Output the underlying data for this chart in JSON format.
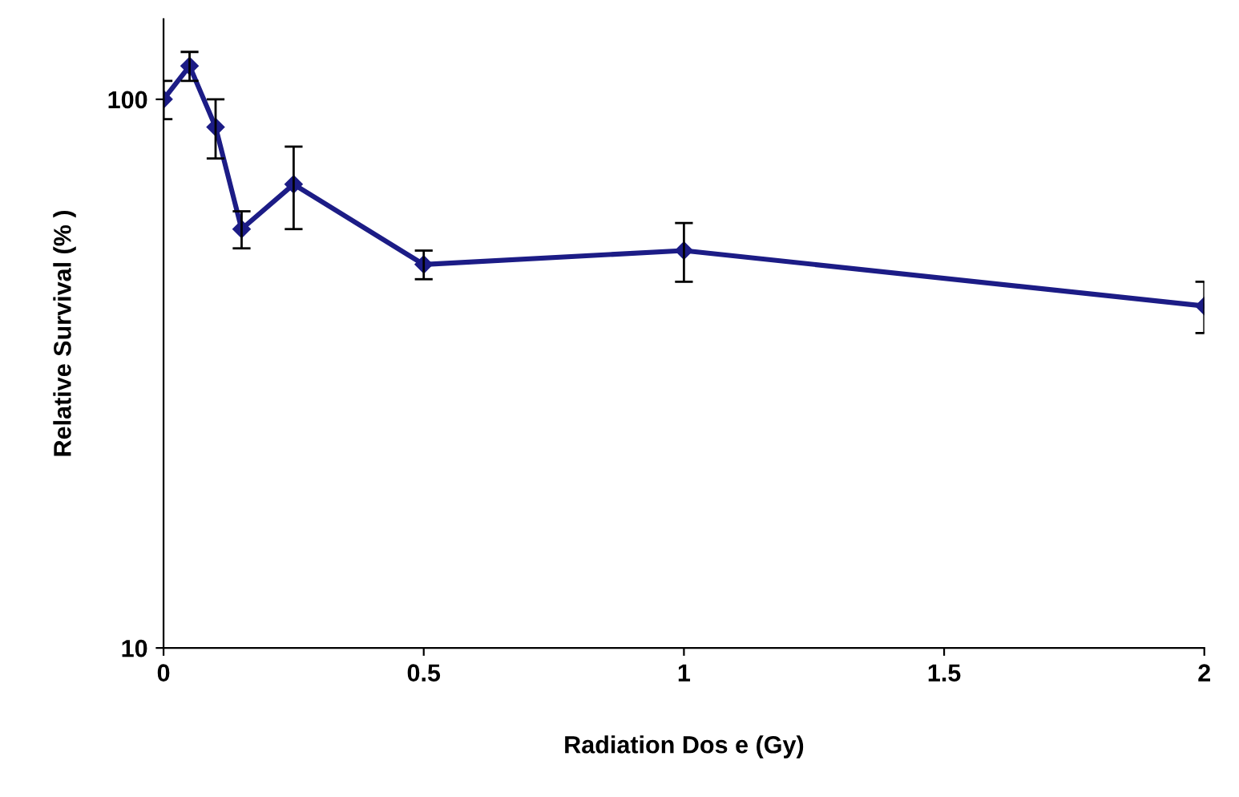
{
  "chart_data": {
    "type": "line",
    "xlabel": "Radiation Dos e (Gy)",
    "ylabel": "Relative Survival (% )",
    "x": [
      0,
      0.05,
      0.1,
      0.15,
      0.25,
      0.5,
      1,
      2
    ],
    "series": [
      {
        "color": "#1c1c86",
        "values": [
          100,
          115,
          89,
          58,
          70,
          50,
          53,
          42
        ],
        "errors": [
          8,
          7,
          11,
          4.5,
          12,
          3,
          6.5,
          4.5
        ]
      }
    ],
    "log": "y",
    "ylim": [
      10,
      140
    ],
    "yticks": [
      10,
      100
    ],
    "xlim": [
      0,
      2
    ],
    "xticks": [
      0,
      0.5,
      1,
      1.5,
      2
    ],
    "marker": "diamond",
    "line_style": "solid",
    "grid": false,
    "legend": false
  }
}
